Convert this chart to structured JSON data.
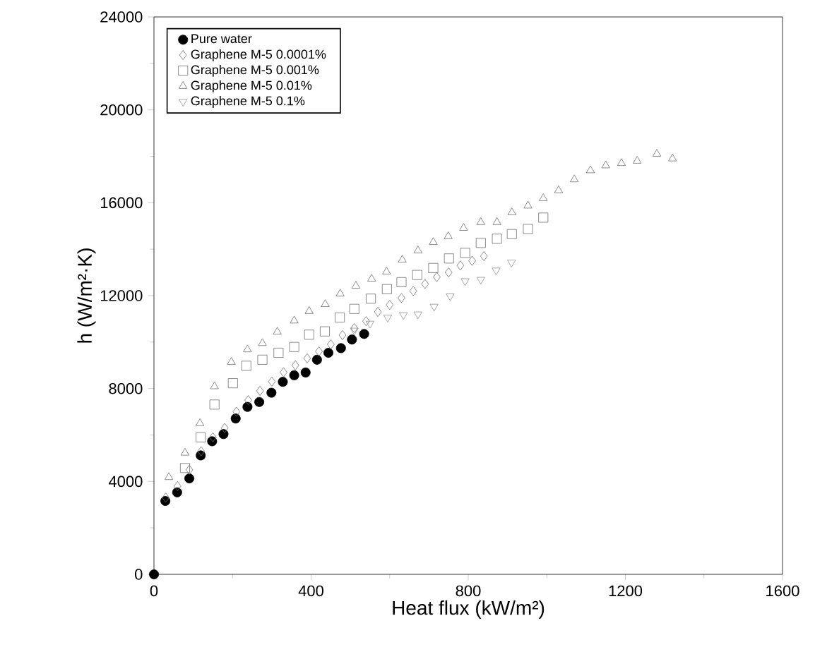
{
  "chart_data": {
    "type": "scatter",
    "xlabel": "Heat flux (kW/m²)",
    "ylabel": "h (W/m²·K)",
    "xlim": [
      0,
      1600
    ],
    "ylim": [
      0,
      24000
    ],
    "xticks": [
      0,
      400,
      800,
      1200,
      1600
    ],
    "yticks": [
      0,
      4000,
      8000,
      12000,
      16000,
      20000,
      24000
    ],
    "grid": false,
    "legend": "top left",
    "series": [
      {
        "name": "Pure water",
        "color": "#000000",
        "marker": "circle",
        "x": [
          0,
          29,
          59,
          90,
          119,
          148,
          177,
          208,
          238,
          268,
          299,
          328,
          357,
          386,
          415,
          444,
          476,
          504,
          535
        ],
        "values": [
          0,
          3160,
          3530,
          4130,
          5120,
          5730,
          6040,
          6710,
          7210,
          7420,
          7820,
          8290,
          8570,
          8690,
          9240,
          9540,
          9740,
          10110,
          10350
        ]
      },
      {
        "name": "Graphene M-5 0.0001%",
        "color": "#707070",
        "marker": "diamond",
        "x": [
          30,
          60,
          90,
          120,
          150,
          180,
          210,
          240,
          270,
          300,
          330,
          360,
          390,
          420,
          450,
          480,
          510,
          540,
          570,
          600,
          630,
          660,
          690,
          720,
          750,
          780,
          810,
          840
        ],
        "values": [
          3300,
          3800,
          4500,
          5300,
          5900,
          6300,
          7000,
          7500,
          7900,
          8300,
          8700,
          9000,
          9300,
          9600,
          9900,
          10300,
          10600,
          10900,
          11300,
          11600,
          11900,
          12200,
          12500,
          12800,
          13000,
          13300,
          13500,
          13700
        ]
      },
      {
        "name": "Graphene M-5 0.001%",
        "color": "#707070",
        "marker": "square",
        "x": [
          79,
          119,
          154,
          201,
          235,
          276,
          317,
          357,
          395,
          435,
          473,
          510,
          552,
          593,
          630,
          670,
          711,
          751,
          792,
          832,
          873,
          911,
          952,
          991
        ],
        "values": [
          4580,
          5900,
          7310,
          8230,
          8980,
          9240,
          9540,
          9790,
          10320,
          10460,
          11060,
          11430,
          11870,
          12280,
          12580,
          12890,
          13190,
          13600,
          13840,
          14270,
          14450,
          14650,
          14870,
          15360
        ]
      },
      {
        "name": "Graphene M-5 0.01%",
        "color": "#707070",
        "marker": "triangle",
        "x": [
          38,
          79,
          117,
          154,
          197,
          238,
          276,
          314,
          357,
          395,
          436,
          474,
          514,
          554,
          592,
          632,
          672,
          711,
          749,
          788,
          832,
          873,
          911,
          952,
          991,
          1030,
          1070,
          1111,
          1150,
          1190,
          1230,
          1280,
          1320
        ],
        "values": [
          4180,
          5230,
          6500,
          8090,
          9140,
          9680,
          9950,
          10440,
          10920,
          11330,
          11630,
          12080,
          12420,
          12720,
          13030,
          13540,
          13940,
          14300,
          14550,
          14910,
          15160,
          15160,
          15580,
          15870,
          16190,
          16530,
          17000,
          17390,
          17600,
          17700,
          17800,
          18100,
          17900
        ]
      },
      {
        "name": "Graphene M-5 0.1%",
        "color": "#909090",
        "marker": "triangle-down",
        "x": [
          510,
          550,
          595,
          635,
          672,
          713,
          754,
          792,
          832,
          871,
          910
        ],
        "values": [
          10500,
          10800,
          11060,
          11170,
          11200,
          11530,
          11980,
          12630,
          12690,
          13090,
          13430
        ]
      }
    ]
  }
}
